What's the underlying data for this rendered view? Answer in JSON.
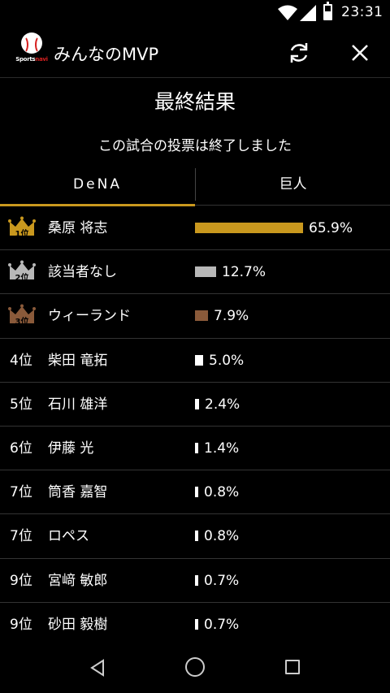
{
  "status_bar": {
    "time": "23:31",
    "icons": [
      "wifi-icon",
      "signal-icon",
      "battery-icon"
    ]
  },
  "app_bar": {
    "brand_main": "Sports",
    "brand_accent": "navi",
    "title": "みんなのMVP",
    "icons": [
      "refresh-icon",
      "close-icon"
    ]
  },
  "result": {
    "title": "最終結果",
    "message": "この試合の投票は終了しました"
  },
  "tabs": [
    {
      "label": "DeNA",
      "selected": true
    },
    {
      "label": "巨人",
      "selected": false
    }
  ],
  "accent_color": "#c9981e",
  "ranking": [
    {
      "rank": 1,
      "rank_label": "1位",
      "crown": "gold",
      "crown_color": "#c9981e",
      "name": "桑原 将志",
      "percent": 65.9,
      "percent_label": "65.9%",
      "bar_color": "#c9981e"
    },
    {
      "rank": 2,
      "rank_label": "2位",
      "crown": "silver",
      "crown_color": "#b8b8b8",
      "name": "該当者なし",
      "percent": 12.7,
      "percent_label": "12.7%",
      "bar_color": "#b8b8b8"
    },
    {
      "rank": 3,
      "rank_label": "3位",
      "crown": "bronze",
      "crown_color": "#8a5a3a",
      "name": "ウィーランド",
      "percent": 7.9,
      "percent_label": "7.9%",
      "bar_color": "#8a5a3a"
    },
    {
      "rank": 4,
      "rank_label": "4位",
      "name": "柴田 竜拓",
      "percent": 5.0,
      "percent_label": "5.0%",
      "bar_color": "#ffffff"
    },
    {
      "rank": 5,
      "rank_label": "5位",
      "name": "石川 雄洋",
      "percent": 2.4,
      "percent_label": "2.4%",
      "bar_color": "#ffffff"
    },
    {
      "rank": 6,
      "rank_label": "6位",
      "name": "伊藤 光",
      "percent": 1.4,
      "percent_label": "1.4%",
      "bar_color": "#ffffff"
    },
    {
      "rank": 7,
      "rank_label": "7位",
      "name": "筒香 嘉智",
      "percent": 0.8,
      "percent_label": "0.8%",
      "bar_color": "#ffffff"
    },
    {
      "rank": 7,
      "rank_label": "7位",
      "name": "ロペス",
      "percent": 0.8,
      "percent_label": "0.8%",
      "bar_color": "#ffffff"
    },
    {
      "rank": 9,
      "rank_label": "9位",
      "name": "宮﨑 敏郎",
      "percent": 0.7,
      "percent_label": "0.7%",
      "bar_color": "#ffffff"
    },
    {
      "rank": 9,
      "rank_label": "9位",
      "name": "砂田 毅樹",
      "percent": 0.7,
      "percent_label": "0.7%",
      "bar_color": "#ffffff"
    }
  ],
  "nav_bar": {
    "icons": [
      "back-icon",
      "home-icon",
      "recent-apps-icon"
    ]
  }
}
